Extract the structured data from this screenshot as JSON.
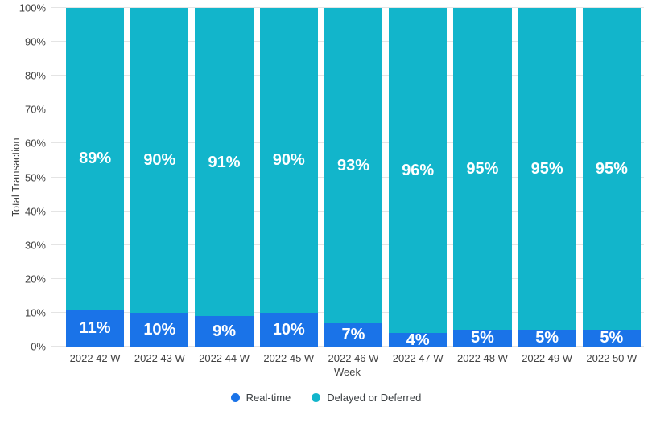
{
  "chart_data": {
    "type": "bar",
    "stacked": true,
    "orientation": "vertical",
    "title": "",
    "xlabel": "Week",
    "ylabel": "Total Transaction",
    "categories": [
      "2022 42 W",
      "2022 43 W",
      "2022 44 W",
      "2022 45 W",
      "2022 46 W",
      "2022 47 W",
      "2022 48 W",
      "2022 49 W",
      "2022 50 W"
    ],
    "series": [
      {
        "name": "Real-time",
        "color": "#1A73E8",
        "values": [
          11,
          10,
          9,
          10,
          7,
          4,
          5,
          5,
          5
        ],
        "labels": [
          "11%",
          "10%",
          "9%",
          "10%",
          "7%",
          "4%",
          "5%",
          "5%",
          "5%"
        ]
      },
      {
        "name": "Delayed or Deferred",
        "color": "#12B5CB",
        "values": [
          89,
          90,
          91,
          90,
          93,
          96,
          95,
          95,
          95
        ],
        "labels": [
          "89%",
          "90%",
          "91%",
          "90%",
          "93%",
          "96%",
          "95%",
          "95%",
          "95%"
        ]
      }
    ],
    "ylim": [
      0,
      100
    ],
    "ytick_labels": [
      "0%",
      "10%",
      "20%",
      "30%",
      "40%",
      "50%",
      "60%",
      "70%",
      "80%",
      "90%",
      "100%"
    ],
    "grid": true,
    "gridline_color": "#e4e4e4",
    "legend_position": "bottom"
  }
}
